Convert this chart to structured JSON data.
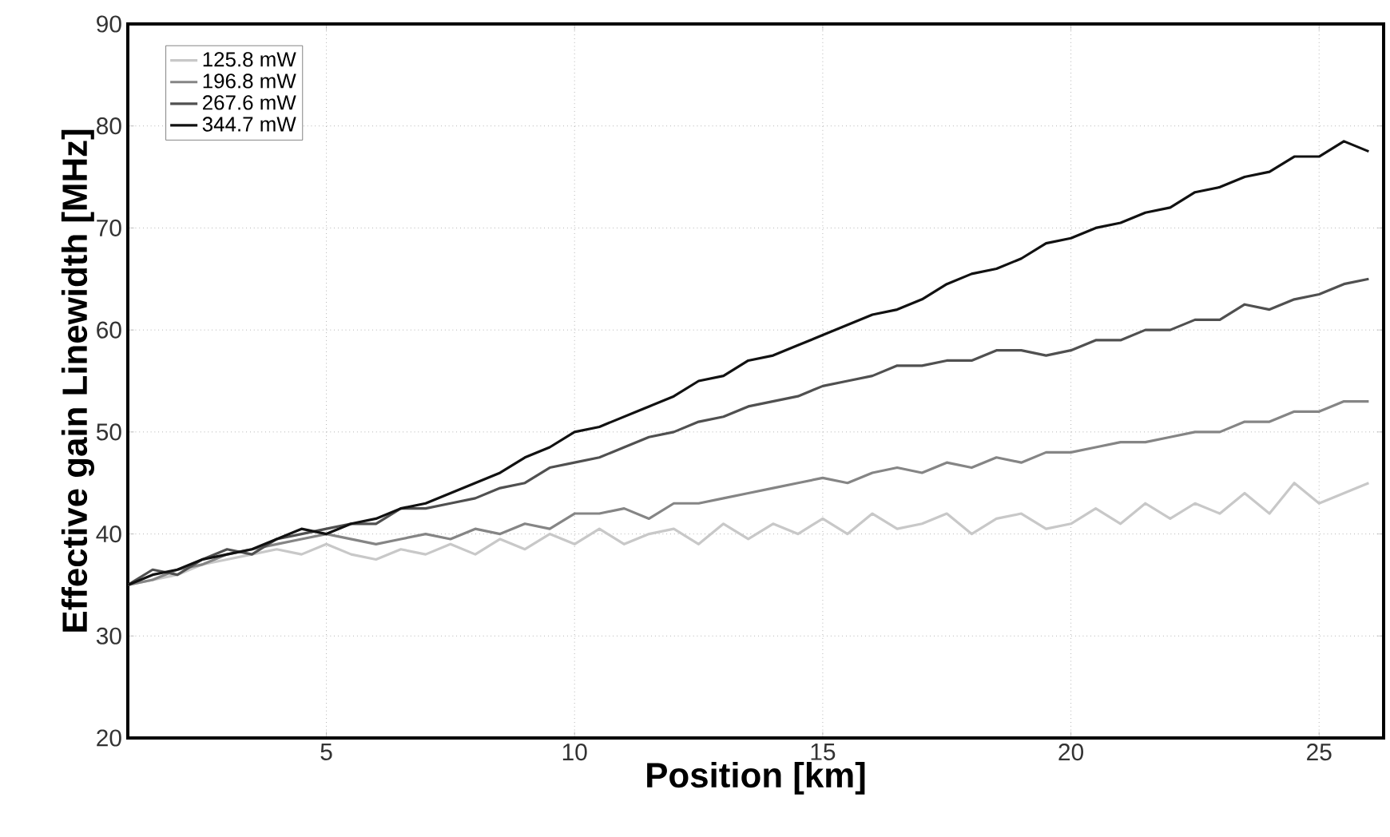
{
  "chart_data": {
    "type": "line",
    "xlabel": "Position [km]",
    "ylabel": "Effective gain Linewidth [MHz]",
    "x": [
      1,
      1.5,
      2,
      2.5,
      3,
      3.5,
      4,
      4.5,
      5,
      5.5,
      6,
      6.5,
      7,
      7.5,
      8,
      8.5,
      9,
      9.5,
      10,
      10.5,
      11,
      11.5,
      12,
      12.5,
      13,
      13.5,
      14,
      14.5,
      15,
      15.5,
      16,
      16.5,
      17,
      17.5,
      18,
      18.5,
      19,
      19.5,
      20,
      20.5,
      21,
      21.5,
      22,
      22.5,
      23,
      23.5,
      24,
      24.5,
      25,
      25.5,
      26
    ],
    "series": [
      {
        "name": "125.8 mW",
        "color": "#c8c8c8",
        "values": [
          35,
          35.5,
          36,
          37,
          37.5,
          38,
          38.5,
          38,
          39,
          38,
          37.5,
          38.5,
          38,
          39,
          38,
          39.5,
          38.5,
          40,
          39,
          40.5,
          39,
          40,
          40.5,
          39,
          41,
          39.5,
          41,
          40,
          41.5,
          40,
          42,
          40.5,
          41,
          42,
          40,
          41.5,
          42,
          40.5,
          41,
          42.5,
          41,
          43,
          41.5,
          43,
          42,
          44,
          42,
          45,
          43,
          44,
          45
        ]
      },
      {
        "name": "196.8 mW",
        "color": "#858585",
        "values": [
          35,
          35.5,
          36.5,
          37,
          38,
          38.5,
          39,
          39.5,
          40,
          39.5,
          39,
          39.5,
          40,
          39.5,
          40.5,
          40,
          41,
          40.5,
          42,
          42,
          42.5,
          41.5,
          43,
          43,
          43.5,
          44,
          44.5,
          45,
          45.5,
          45,
          46,
          46.5,
          46,
          47,
          46.5,
          47.5,
          47,
          48,
          48,
          48.5,
          49,
          49,
          49.5,
          50,
          50,
          51,
          51,
          52,
          52,
          53,
          53
        ]
      },
      {
        "name": "267.6 mW",
        "color": "#505050",
        "values": [
          35,
          36.5,
          36,
          37.5,
          38.5,
          38,
          39.5,
          40,
          40.5,
          41,
          41,
          42.5,
          42.5,
          43,
          43.5,
          44.5,
          45,
          46.5,
          47,
          47.5,
          48.5,
          49.5,
          50,
          51,
          51.5,
          52.5,
          53,
          53.5,
          54.5,
          55,
          55.5,
          56.5,
          56.5,
          57,
          57,
          58,
          58,
          57.5,
          58,
          59,
          59,
          60,
          60,
          61,
          61,
          62.5,
          62,
          63,
          63.5,
          64.5,
          65
        ]
      },
      {
        "name": "344.7 mW",
        "color": "#111111",
        "values": [
          35,
          36,
          36.5,
          37.5,
          38,
          38.5,
          39.5,
          40.5,
          40,
          41,
          41.5,
          42.5,
          43,
          44,
          45,
          46,
          47.5,
          48.5,
          50,
          50.5,
          51.5,
          52.5,
          53.5,
          55,
          55.5,
          57,
          57.5,
          58.5,
          59.5,
          60.5,
          61.5,
          62,
          63,
          64.5,
          65.5,
          66,
          67,
          68.5,
          69,
          70,
          70.5,
          71.5,
          72,
          73.5,
          74,
          75,
          75.5,
          77,
          77,
          78.5,
          77.5
        ]
      }
    ],
    "xlim": [
      1,
      26.3
    ],
    "ylim": [
      20,
      90
    ],
    "xticks": [
      5,
      10,
      15,
      20,
      25
    ],
    "yticks": [
      20,
      30,
      40,
      50,
      60,
      70,
      80,
      90
    ],
    "grid": true,
    "legend": "top left"
  }
}
